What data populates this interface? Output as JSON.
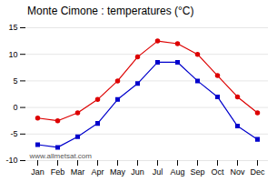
{
  "chart_data": {
    "type": "line",
    "title": "Monte Cimone : temperatures (°C)",
    "categories": [
      "Jan",
      "Feb",
      "Mar",
      "Apr",
      "May",
      "Jun",
      "Jul",
      "Aug",
      "Sep",
      "Oct",
      "Nov",
      "Dec"
    ],
    "series": [
      {
        "color": "#dd0000",
        "marker": "circle",
        "line_style": "solid",
        "values": [
          -2,
          -2.5,
          -1,
          1.5,
          5,
          9.5,
          12.5,
          12,
          10,
          6,
          2,
          -1
        ]
      },
      {
        "color": "#0000cc",
        "marker": "square",
        "line_style": "solid",
        "values": [
          -7,
          -7.5,
          -5.5,
          -3,
          1.5,
          4.5,
          8.5,
          8.5,
          5,
          2,
          -3.5,
          -6
        ]
      }
    ],
    "ylim": [
      -10,
      15
    ],
    "yticks": [
      -10,
      -5,
      0,
      5,
      10,
      15
    ],
    "grid": true,
    "annotations": [
      "www.allmetsat.com"
    ]
  }
}
